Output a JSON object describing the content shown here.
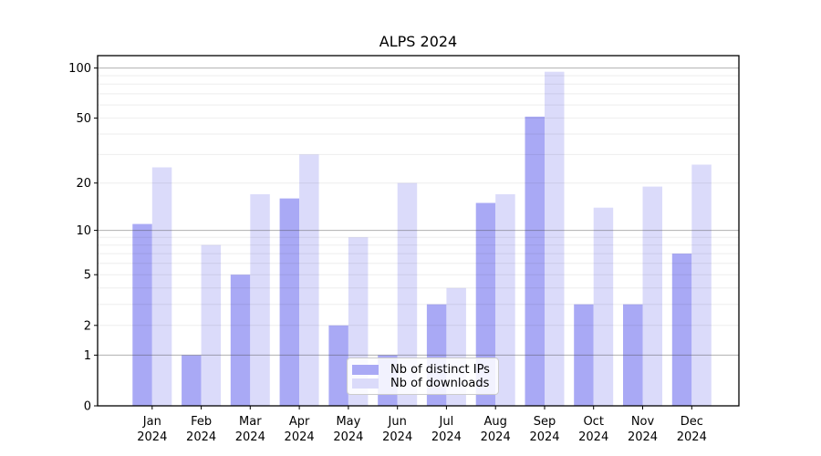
{
  "chart_data": {
    "type": "bar",
    "title": "ALPS 2024",
    "categories": [
      "Jan",
      "Feb",
      "Mar",
      "Apr",
      "May",
      "Jun",
      "Jul",
      "Aug",
      "Sep",
      "Oct",
      "Nov",
      "Dec"
    ],
    "year_label": "2024",
    "series": [
      {
        "name": "Nb of distinct IPs",
        "color": "#a9a9f5",
        "values": [
          11,
          1,
          5,
          16,
          2,
          1,
          3,
          15,
          51,
          3,
          3,
          7
        ]
      },
      {
        "name": "Nb of downloads",
        "color": "#dbdbfa",
        "values": [
          25,
          8,
          17,
          30,
          9,
          20,
          4,
          17,
          95,
          14,
          19,
          26
        ]
      }
    ],
    "y_scale": "log1p",
    "ylim": [
      0,
      119
    ],
    "y_ticks": [
      0,
      1,
      2,
      5,
      10,
      20,
      50,
      100
    ],
    "y_major_gridlines": [
      1,
      10,
      100
    ],
    "y_minor_gridlines": [
      2,
      3,
      4,
      5,
      6,
      7,
      8,
      9,
      20,
      30,
      40,
      50,
      60,
      70,
      80,
      90
    ],
    "grid": "on",
    "legend_position": "lower center inside",
    "xlabel": "",
    "ylabel": ""
  }
}
